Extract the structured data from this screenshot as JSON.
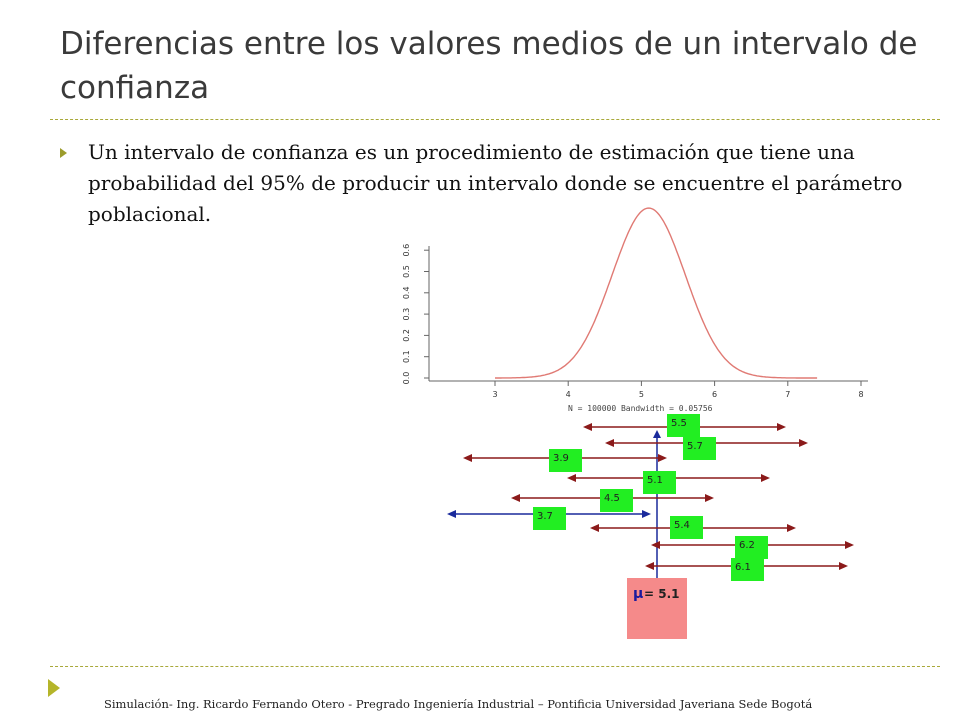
{
  "title": "Diferencias entre los valores medios de un intervalo de confianza",
  "bullet": "Un intervalo de confianza es un procedimiento de estimación que tiene una probabilidad del 95% de producir un intervalo donde se encuentre el parámetro poblacional.",
  "density_plot": {
    "x_ticks": [
      "3",
      "4",
      "5",
      "6",
      "7",
      "8"
    ],
    "y_ticks": [
      "0.0",
      "0.1",
      "0.2",
      "0.3",
      "0.4",
      "0.5",
      "0.6"
    ],
    "caption": "N = 100000   Bandwidth = 0.05756"
  },
  "intervals": [
    {
      "label": "5.5",
      "color": "#8b1a1a"
    },
    {
      "label": "5.7",
      "color": "#8b1a1a"
    },
    {
      "label": "3.9",
      "color": "#8b1a1a"
    },
    {
      "label": "5.1",
      "color": "#8b1a1a"
    },
    {
      "label": "4.5",
      "color": "#8b1a1a"
    },
    {
      "label": "3.7",
      "color": "#1a2a9c"
    },
    {
      "label": "5.4",
      "color": "#8b1a1a"
    },
    {
      "label": "6.2",
      "color": "#8b1a1a"
    },
    {
      "label": "6.1",
      "color": "#8b1a1a"
    }
  ],
  "mu": {
    "symbol": "μ",
    "text": "= 5.1"
  },
  "footer": "Simulación- Ing. Ricardo Fernando Otero - Pregrado Ingeniería Industrial – Pontificia Universidad Javeriana Sede Bogotá",
  "colors": {
    "accent": "#a9a93a",
    "label_bg": "#22ee22",
    "mu_box": "#f58a8a",
    "curve": "#e07a74"
  }
}
